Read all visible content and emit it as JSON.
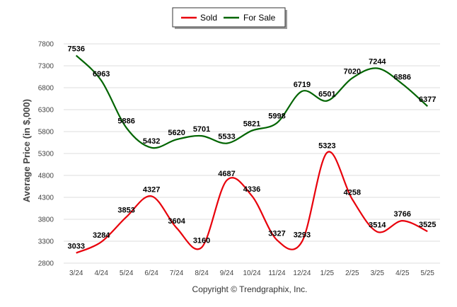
{
  "chart_data": {
    "type": "line",
    "ylabel": "Average Price (in $,000)",
    "xlabel": "",
    "ylim": [
      2800,
      7800
    ],
    "yticks": [
      2800,
      3300,
      3800,
      4300,
      4800,
      5300,
      5800,
      6300,
      6800,
      7300,
      7800
    ],
    "categories": [
      "3/24",
      "4/24",
      "5/24",
      "6/24",
      "7/24",
      "8/24",
      "9/24",
      "10/24",
      "11/24",
      "12/24",
      "1/25",
      "2/25",
      "3/25",
      "4/25",
      "5/25"
    ],
    "series": [
      {
        "name": "Sold",
        "color": "#e8000b",
        "values": [
          3033,
          3284,
          3853,
          4327,
          3604,
          3160,
          4687,
          4336,
          3327,
          3293,
          5323,
          4258,
          3514,
          3766,
          3525
        ]
      },
      {
        "name": "For Sale",
        "color": "#006400",
        "values": [
          7536,
          6963,
          5886,
          5432,
          5620,
          5701,
          5533,
          5821,
          5998,
          6719,
          6501,
          7020,
          7244,
          6886,
          6377
        ]
      }
    ],
    "legend_position": "top-center",
    "grid": true,
    "data_labels": true
  },
  "footer": {
    "copyright": "Copyright © Trendgraphix, Inc."
  }
}
